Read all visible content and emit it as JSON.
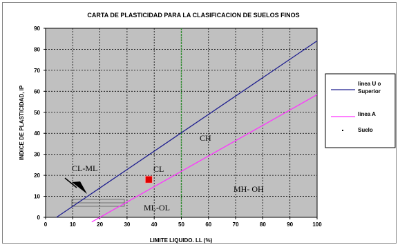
{
  "chart_data": {
    "type": "line",
    "title": "CARTA DE PLASTICIDAD PARA LA CLASIFICACION DE SUELOS FINOS",
    "xlabel": "LIMITE LIQUIDO. LL (%)",
    "ylabel": "INDICE DE PLASTICIDAD, IP",
    "xlim": [
      0,
      100
    ],
    "ylim": [
      0,
      90
    ],
    "x_ticks": [
      "0",
      "10",
      "20",
      "30",
      "40",
      "50",
      "60",
      "70",
      "80",
      "90",
      "100"
    ],
    "y_ticks": [
      "0",
      "10",
      "20",
      "30",
      "40",
      "50",
      "60",
      "70",
      "80",
      "90"
    ],
    "grid": true,
    "legend_position": "right",
    "series": [
      {
        "name": "linea U o Superior",
        "color": "#1f1f8f",
        "x": [
          4,
          100
        ],
        "y": [
          0,
          84
        ]
      },
      {
        "name": "linea A",
        "color": "#ff33ff",
        "x": [
          17,
          100
        ],
        "y": [
          -2.2,
          58.4
        ]
      },
      {
        "name": "Suelo",
        "color": "#e00000",
        "x": [
          38
        ],
        "y": [
          18
        ],
        "marker": "square"
      }
    ],
    "vertical_line": {
      "x": 50,
      "color": "#2e8b2e"
    },
    "region_labels": [
      "CL-ML",
      "CL",
      "CH",
      "MH- OH",
      "ML-OL"
    ]
  }
}
